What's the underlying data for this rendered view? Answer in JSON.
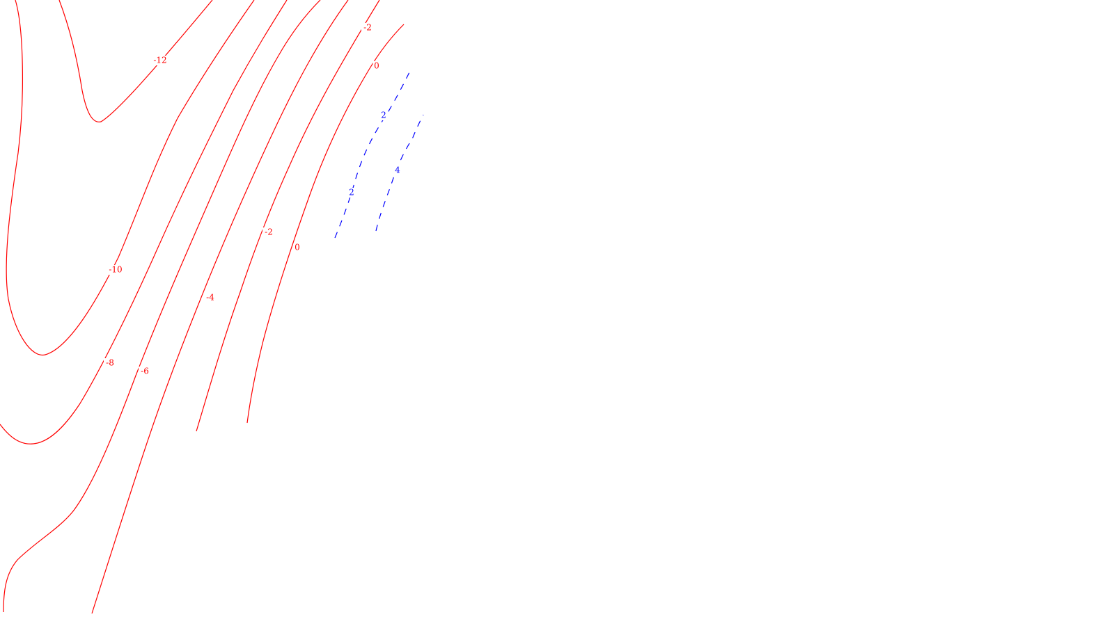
{
  "chart_data": {
    "type": "contour",
    "colors": {
      "negative": "#ff0000",
      "zero": "#ff0000",
      "positive": "#0000ff",
      "background": "#ffffff"
    },
    "line_styles": {
      "non_positive": "solid",
      "positive": "dashed"
    },
    "levels": [
      -12,
      -10,
      -8,
      -6,
      -4,
      -2,
      0,
      2,
      4
    ],
    "label_texts": [
      "-12",
      "-10",
      "-8",
      "-6",
      "-4",
      "-2",
      "-2",
      "0",
      "0",
      "2",
      "2",
      "4"
    ],
    "grid": false,
    "axes_visible": false,
    "legend": "none"
  }
}
